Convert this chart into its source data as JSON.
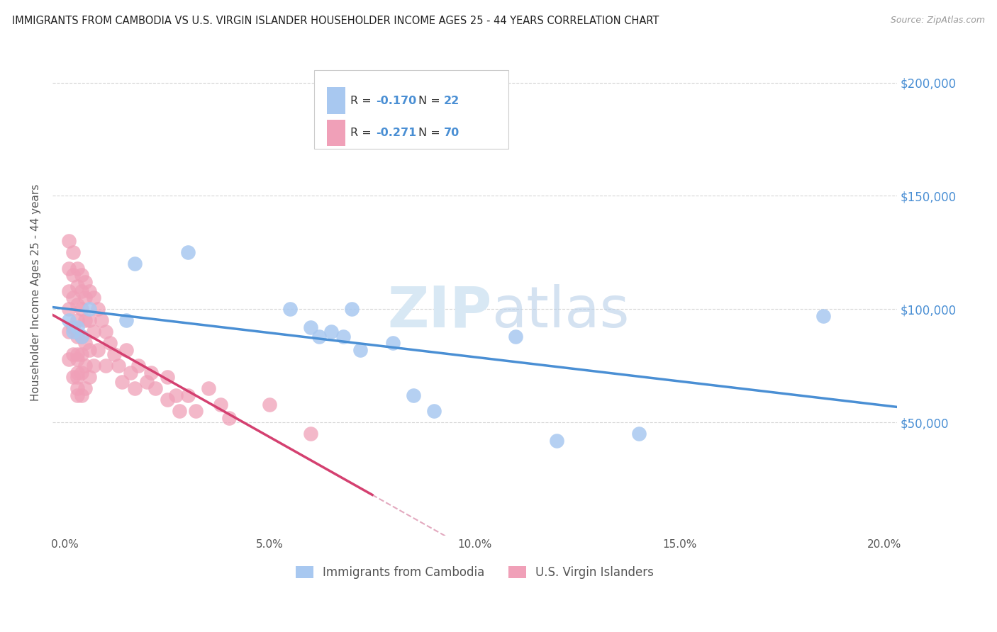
{
  "title": "IMMIGRANTS FROM CAMBODIA VS U.S. VIRGIN ISLANDER HOUSEHOLDER INCOME AGES 25 - 44 YEARS CORRELATION CHART",
  "source": "Source: ZipAtlas.com",
  "ylabel": "Householder Income Ages 25 - 44 years",
  "xlabel_ticks": [
    "0.0%",
    "5.0%",
    "10.0%",
    "15.0%",
    "20.0%"
  ],
  "xlabel_vals": [
    0.0,
    0.05,
    0.1,
    0.15,
    0.2
  ],
  "ylabel_ticks": [
    "$50,000",
    "$100,000",
    "$150,000",
    "$200,000"
  ],
  "ylabel_vals": [
    50000,
    100000,
    150000,
    200000
  ],
  "ylim": [
    0,
    215000
  ],
  "xlim": [
    -0.003,
    0.203
  ],
  "legend_label1": "Immigrants from Cambodia",
  "legend_label2": "U.S. Virgin Islanders",
  "R1": "-0.170",
  "N1": "22",
  "R2": "-0.271",
  "N2": "70",
  "color_blue": "#a8c8f0",
  "color_pink": "#f0a0b8",
  "color_blue_line": "#4a8fd4",
  "color_pink_line": "#d44070",
  "color_dashed_line": "#e0a0b8",
  "watermark_color": "#d8e8f4",
  "background_color": "#ffffff",
  "blue_points_x": [
    0.001,
    0.002,
    0.003,
    0.004,
    0.006,
    0.015,
    0.017,
    0.03,
    0.055,
    0.06,
    0.062,
    0.065,
    0.068,
    0.07,
    0.072,
    0.08,
    0.085,
    0.09,
    0.11,
    0.12,
    0.14,
    0.185
  ],
  "blue_points_y": [
    95000,
    90000,
    92000,
    88000,
    100000,
    95000,
    120000,
    125000,
    100000,
    92000,
    88000,
    90000,
    88000,
    100000,
    82000,
    85000,
    62000,
    55000,
    88000,
    42000,
    45000,
    97000
  ],
  "pink_points_x": [
    0.001,
    0.001,
    0.001,
    0.001,
    0.001,
    0.001,
    0.002,
    0.002,
    0.002,
    0.002,
    0.002,
    0.002,
    0.003,
    0.003,
    0.003,
    0.003,
    0.003,
    0.003,
    0.003,
    0.003,
    0.003,
    0.003,
    0.003,
    0.004,
    0.004,
    0.004,
    0.004,
    0.004,
    0.004,
    0.004,
    0.005,
    0.005,
    0.005,
    0.005,
    0.005,
    0.005,
    0.006,
    0.006,
    0.006,
    0.006,
    0.007,
    0.007,
    0.007,
    0.008,
    0.008,
    0.009,
    0.01,
    0.01,
    0.011,
    0.012,
    0.013,
    0.014,
    0.015,
    0.016,
    0.017,
    0.018,
    0.02,
    0.021,
    0.022,
    0.025,
    0.025,
    0.027,
    0.028,
    0.03,
    0.032,
    0.035,
    0.038,
    0.04,
    0.05,
    0.06
  ],
  "pink_points_y": [
    130000,
    118000,
    108000,
    100000,
    90000,
    78000,
    125000,
    115000,
    105000,
    92000,
    80000,
    70000,
    118000,
    110000,
    102000,
    95000,
    88000,
    80000,
    72000,
    65000,
    78000,
    70000,
    62000,
    115000,
    108000,
    100000,
    88000,
    80000,
    72000,
    62000,
    112000,
    105000,
    95000,
    85000,
    75000,
    65000,
    108000,
    95000,
    82000,
    70000,
    105000,
    90000,
    75000,
    100000,
    82000,
    95000,
    90000,
    75000,
    85000,
    80000,
    75000,
    68000,
    82000,
    72000,
    65000,
    75000,
    68000,
    72000,
    65000,
    60000,
    70000,
    62000,
    55000,
    62000,
    55000,
    65000,
    58000,
    52000,
    58000,
    45000
  ]
}
